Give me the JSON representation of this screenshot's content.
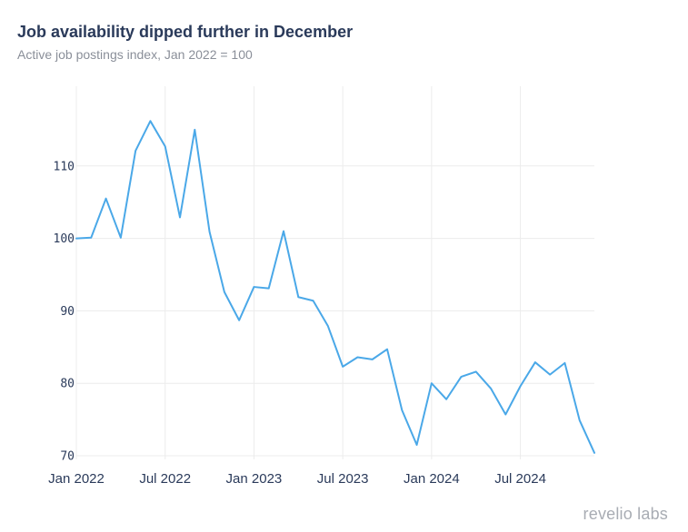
{
  "chart_data": {
    "type": "line",
    "title": "Job availability dipped further in December",
    "subtitle": "Active job postings index, Jan 2022 = 100",
    "xlabel": "",
    "ylabel": "",
    "yticks": [
      70,
      80,
      90,
      100,
      110
    ],
    "ylim": [
      69.5,
      121
    ],
    "x_tick_labels": [
      {
        "label": "Jan 2022",
        "index": 0
      },
      {
        "label": "Jul 2022",
        "index": 6
      },
      {
        "label": "Jan 2023",
        "index": 12
      },
      {
        "label": "Jul 2023",
        "index": 18
      },
      {
        "label": "Jan 2024",
        "index": 24
      },
      {
        "label": "Jul 2024",
        "index": 30
      }
    ],
    "x": [
      "2022-01",
      "2022-02",
      "2022-03",
      "2022-04",
      "2022-05",
      "2022-06",
      "2022-07",
      "2022-08",
      "2022-09",
      "2022-10",
      "2022-11",
      "2022-12",
      "2023-01",
      "2023-02",
      "2023-03",
      "2023-04",
      "2023-05",
      "2023-06",
      "2023-07",
      "2023-08",
      "2023-09",
      "2023-10",
      "2023-11",
      "2023-12",
      "2024-01",
      "2024-02",
      "2024-03",
      "2024-04",
      "2024-05",
      "2024-06",
      "2024-07",
      "2024-08",
      "2024-09",
      "2024-10",
      "2024-11",
      "2024-12"
    ],
    "series": [
      {
        "name": "Active job postings index",
        "color": "#4aa8e8",
        "values": [
          100,
          100.1,
          105.5,
          100.1,
          112.1,
          116.2,
          112.7,
          102.9,
          115,
          100.9,
          92.6,
          88.7,
          93.3,
          93.1,
          101,
          91.9,
          91.4,
          87.9,
          82.3,
          83.6,
          83.3,
          84.7,
          76.3,
          71.5,
          80,
          77.8,
          80.9,
          81.6,
          79.3,
          75.7,
          79.6,
          82.9,
          81.2,
          82.8,
          74.9,
          70.4
        ]
      }
    ],
    "grid": true
  },
  "branding": {
    "logo_text": "revelio labs",
    "logo_color": "#a8acb3"
  }
}
